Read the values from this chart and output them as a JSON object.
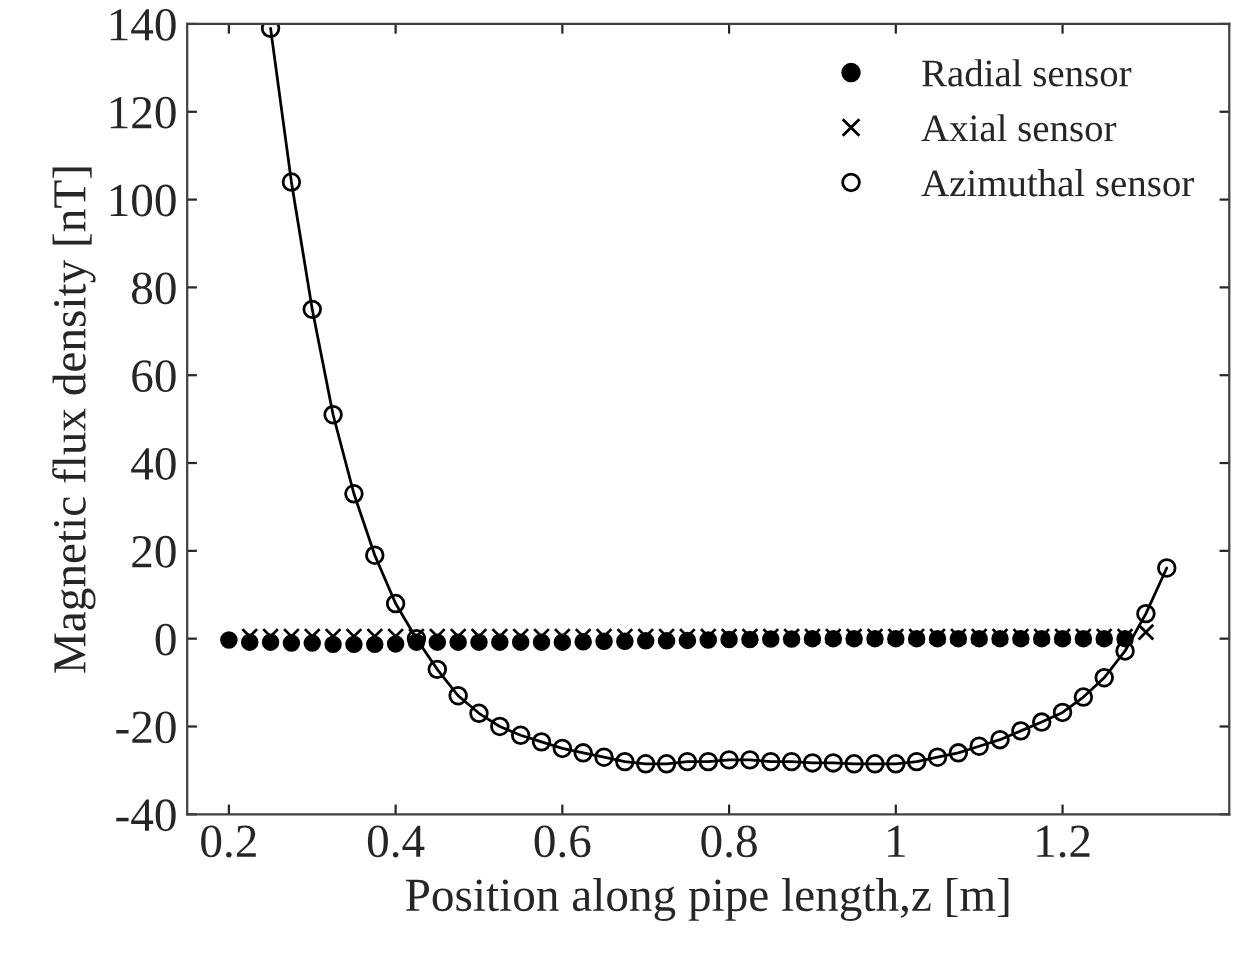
{
  "chart_data": {
    "type": "line",
    "xlabel": "Position along pipe length,z [m]",
    "ylabel": "Magnetic flux density [nT]",
    "xlim": [
      0.15,
      1.4
    ],
    "xticks": [
      0.2,
      0.4,
      0.6,
      0.8,
      1,
      1.2
    ],
    "ylim": [
      -40,
      140
    ],
    "yticks": [
      -40,
      -20,
      0,
      20,
      40,
      60,
      80,
      100,
      120,
      140
    ],
    "grid": false,
    "legend": "top right",
    "line_style": "solid",
    "series": [
      {
        "name": "Radial sensor",
        "type": "scatter",
        "color": "#000000",
        "marker": "circle",
        "x": [
          0.2,
          0.225,
          0.25,
          0.275,
          0.3,
          0.325,
          0.35,
          0.375,
          0.4,
          0.425,
          0.45,
          0.475,
          0.5,
          0.525,
          0.55,
          0.575,
          0.6,
          0.625,
          0.65,
          0.675,
          0.7,
          0.725,
          0.75,
          0.775,
          0.8,
          0.825,
          0.85,
          0.875,
          0.9,
          0.925,
          0.95,
          0.975,
          1.0,
          1.025,
          1.05,
          1.075,
          1.1,
          1.125,
          1.15,
          1.175,
          1.2,
          1.225,
          1.25,
          1.275
        ],
        "values": [
          -0.3,
          -0.8,
          -0.8,
          -1.0,
          -1.0,
          -1.3,
          -1.3,
          -1.3,
          -1.2,
          -0.8,
          -0.8,
          -0.8,
          -0.8,
          -0.8,
          -0.8,
          -0.8,
          -0.8,
          -0.7,
          -0.6,
          -0.6,
          -0.5,
          -0.5,
          -0.4,
          -0.3,
          -0.2,
          -0.2,
          -0.1,
          -0.1,
          0,
          0,
          0,
          0,
          0,
          0,
          0,
          0,
          0,
          0,
          0,
          0,
          0,
          0,
          0,
          0
        ]
      },
      {
        "name": "Axial sensor",
        "type": "scatter",
        "color": "#000000",
        "marker": "cross",
        "x": [
          0.225,
          0.25,
          0.275,
          0.3,
          0.325,
          0.35,
          0.375,
          0.4,
          0.425,
          0.45,
          0.475,
          0.5,
          0.525,
          0.55,
          0.575,
          0.6,
          0.625,
          0.65,
          0.675,
          0.7,
          0.725,
          0.75,
          0.775,
          0.8,
          0.825,
          0.85,
          0.875,
          0.9,
          0.925,
          0.95,
          0.975,
          1.0,
          1.025,
          1.05,
          1.075,
          1.1,
          1.125,
          1.15,
          1.175,
          1.2,
          1.225,
          1.25,
          1.275,
          1.3
        ],
        "values": [
          0.5,
          0.5,
          0.5,
          0.5,
          0.5,
          0.5,
          0.5,
          0.5,
          0.5,
          0.5,
          0.5,
          0.5,
          0.5,
          0.5,
          0.5,
          0.5,
          0.5,
          0.5,
          0.5,
          0.5,
          0.5,
          0.5,
          0.5,
          0.5,
          0.5,
          0.5,
          0.5,
          0.5,
          0.5,
          0.5,
          0.5,
          0.5,
          0.5,
          0.5,
          0.5,
          0.5,
          0.5,
          0.5,
          0.5,
          0.5,
          0.5,
          0.5,
          0.5,
          1.5
        ]
      },
      {
        "name": "Azimuthal sensor",
        "color": "#000000",
        "marker": "circle",
        "x": [
          0.25,
          0.275,
          0.3,
          0.325,
          0.35,
          0.375,
          0.4,
          0.425,
          0.45,
          0.475,
          0.5,
          0.525,
          0.55,
          0.575,
          0.6,
          0.625,
          0.65,
          0.675,
          0.7,
          0.725,
          0.75,
          0.775,
          0.8,
          0.825,
          0.85,
          0.875,
          0.9,
          0.925,
          0.95,
          0.975,
          1.0,
          1.025,
          1.05,
          1.075,
          1.1,
          1.125,
          1.15,
          1.175,
          1.2,
          1.225,
          1.25,
          1.275,
          1.3,
          1.325
        ],
        "values": [
          139,
          104,
          75,
          51,
          33,
          19,
          8,
          0,
          -7,
          -13,
          -17,
          -20,
          -22,
          -23.5,
          -25,
          -26,
          -27,
          -28,
          -28.5,
          -28.5,
          -28,
          -28,
          -27.6,
          -27.6,
          -28,
          -28,
          -28.3,
          -28.3,
          -28.5,
          -28.5,
          -28.5,
          -28,
          -27,
          -26,
          -24.5,
          -23,
          -21,
          -19,
          -16.8,
          -13.3,
          -8.9,
          -2.8,
          5.7,
          16.1
        ]
      }
    ]
  }
}
